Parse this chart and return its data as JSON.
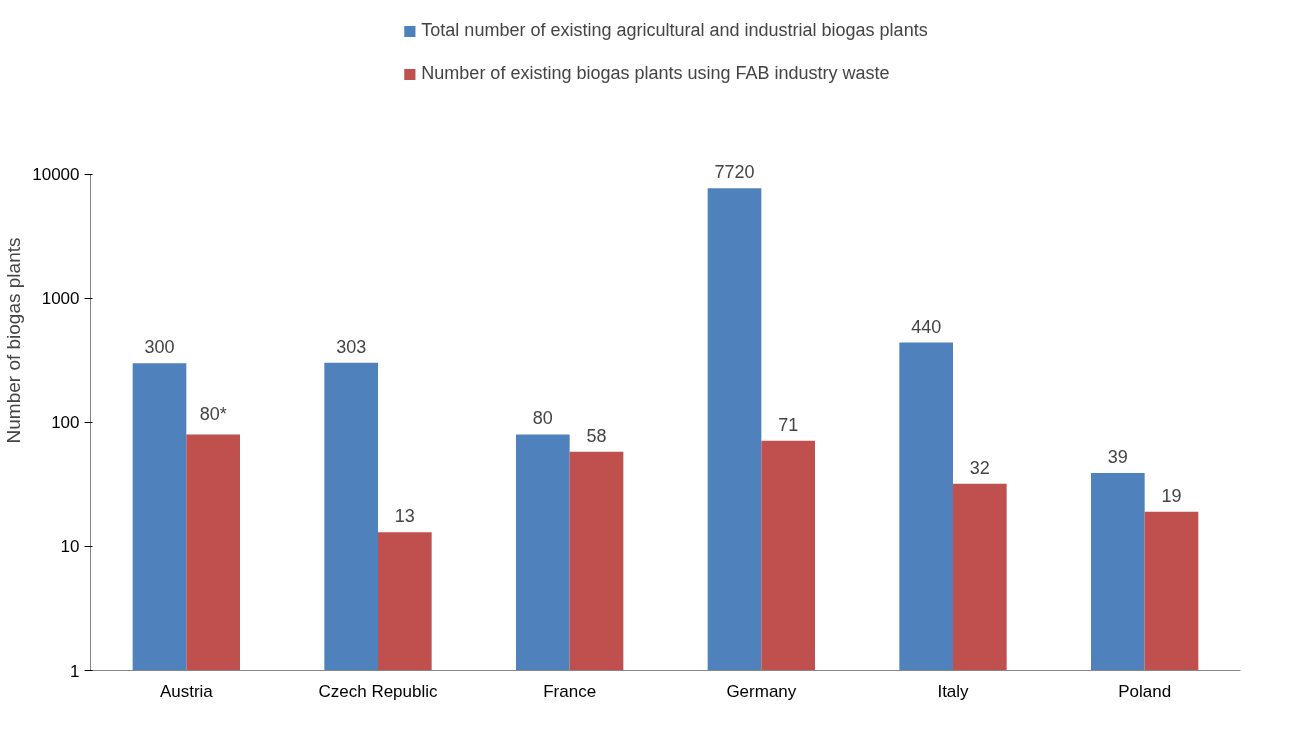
{
  "chart_data": {
    "type": "bar",
    "ylabel": "Number of biogas plants",
    "categories": [
      "Austria",
      "Czech Republic",
      "France",
      "Germany",
      "Italy",
      "Poland"
    ],
    "series": [
      {
        "name": "Total number of existing agricultural and industrial biogas plants",
        "color": "#4f81bd",
        "values": [
          300,
          303,
          80,
          7720,
          440,
          39
        ],
        "value_labels": [
          "300",
          "303",
          "80",
          "7720",
          "440",
          "39"
        ]
      },
      {
        "name": "Number of existing biogas plants using FAB industry waste",
        "color": "#c0504d",
        "values": [
          80,
          13,
          58,
          71,
          32,
          19
        ],
        "value_labels": [
          "80*",
          "13",
          "58",
          "71",
          "32",
          "19"
        ]
      }
    ],
    "log": true,
    "ylim": [
      1,
      10000
    ],
    "yticks": [
      1,
      10,
      100,
      1000,
      10000
    ],
    "grid": false,
    "legend": "top"
  }
}
